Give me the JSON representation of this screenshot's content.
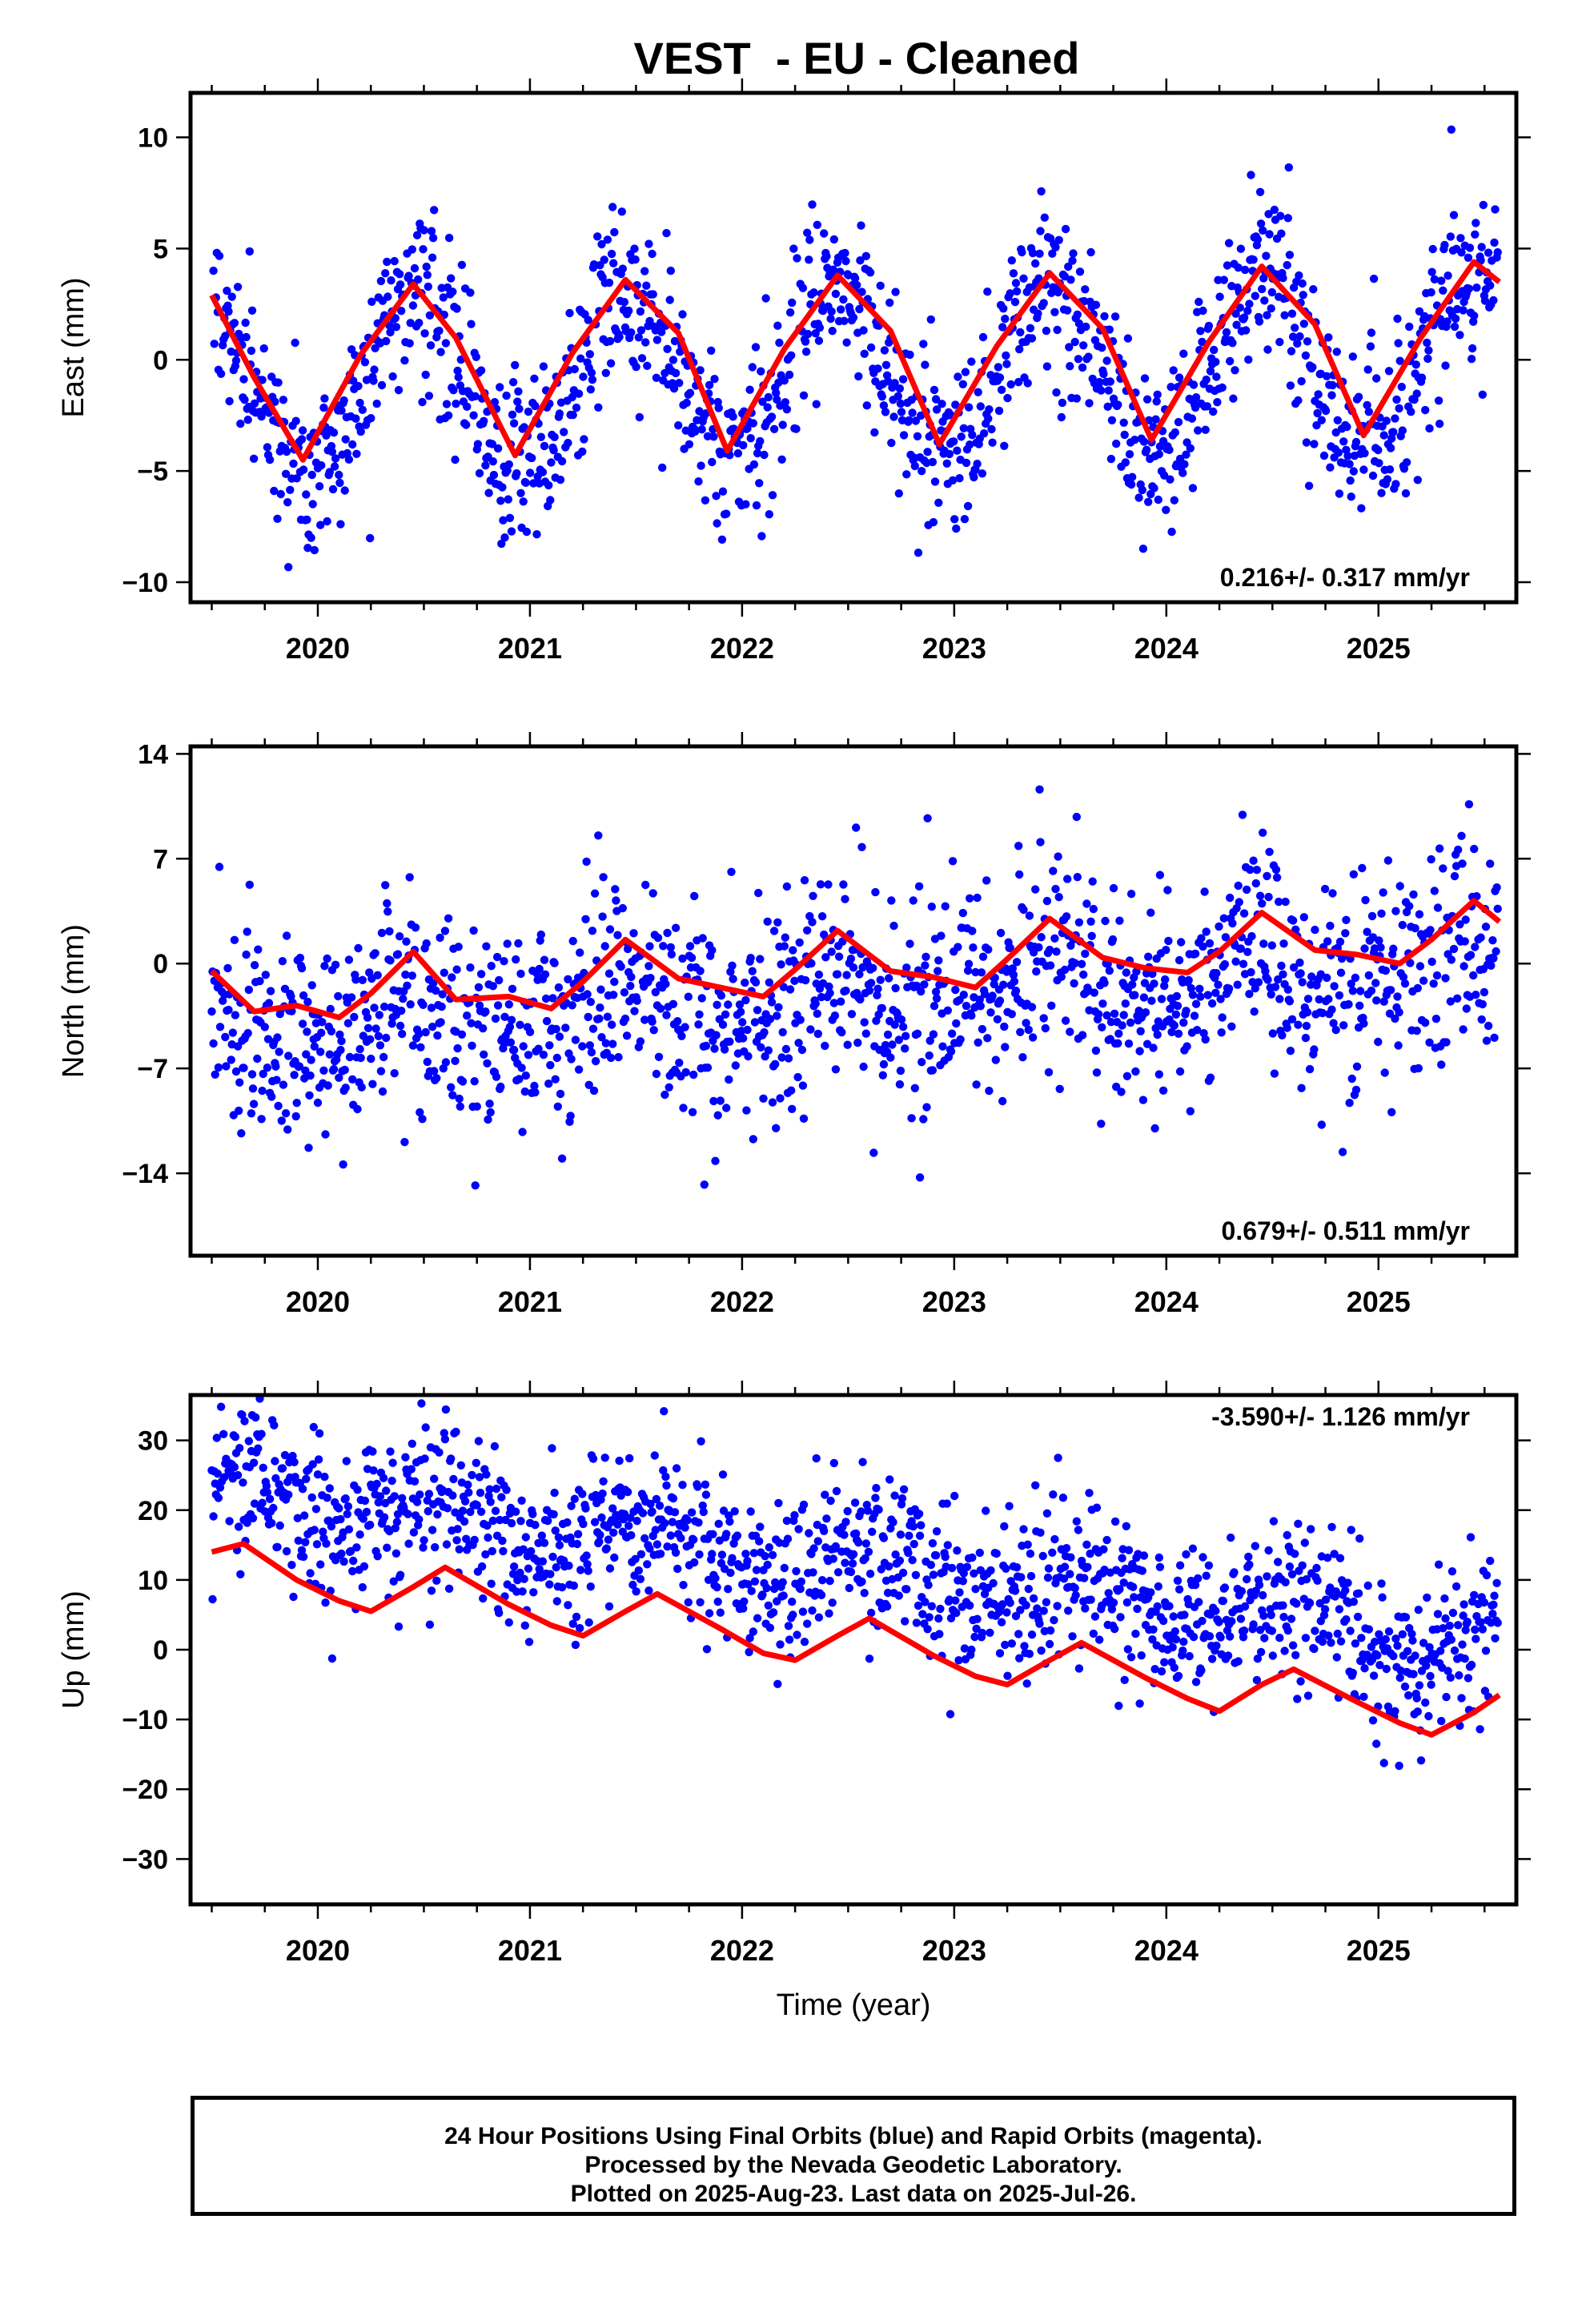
{
  "title": "VEST  - EU - Cleaned",
  "footer": {
    "lines": [
      "24 Hour Positions Using Final Orbits (blue) and Rapid Orbits (magenta).",
      "Processed by the Nevada Geodetic Laboratory.",
      "Plotted on 2025-Aug-23. Last data on 2025-Jul-26."
    ]
  },
  "colors": {
    "points": "#0000ff",
    "fit": "#ff0000",
    "axes": "#000000"
  },
  "chart_data": [
    {
      "type": "scatter",
      "name_key": "east",
      "ylabel": "East (mm)",
      "xlabel": "",
      "xlim": [
        2019.4,
        2025.65
      ],
      "ylim": [
        -10.9,
        12
      ],
      "yticks": [
        -10,
        -5,
        0,
        5,
        10
      ],
      "yticklabels": [
        "−10",
        "−5",
        "0",
        "5",
        "10"
      ],
      "xticks": [
        2020,
        2021,
        2022,
        2023,
        2024,
        2025
      ],
      "rate_label": "0.216+/- 0.317 mm/yr",
      "rate_position": "bottom-right",
      "model": {
        "velocity": 0.216,
        "annual_amp": 3.9,
        "annual_phase_peak": 0.45,
        "semiannual_amp": 0.1,
        "noise_sd": 1.9,
        "offset": -0.6
      },
      "fit_line": {
        "x": [
          2019.5,
          2019.7,
          2019.93,
          2020.2,
          2020.45,
          2020.65,
          2020.93,
          2021.2,
          2021.45,
          2021.7,
          2021.93,
          2022.2,
          2022.45,
          2022.7,
          2022.93,
          2023.2,
          2023.45,
          2023.7,
          2023.93,
          2024.2,
          2024.45,
          2024.7,
          2024.93,
          2025.2,
          2025.45,
          2025.57
        ],
        "y": [
          2.9,
          -0.8,
          -4.5,
          0.2,
          3.4,
          1.0,
          -4.3,
          0.3,
          3.6,
          1.2,
          -4.1,
          0.5,
          3.8,
          1.3,
          -3.8,
          0.6,
          3.9,
          1.4,
          -3.6,
          0.8,
          4.2,
          1.6,
          -3.4,
          1.0,
          4.4,
          3.5
        ]
      }
    },
    {
      "type": "scatter",
      "name_key": "north",
      "ylabel": "North (mm)",
      "xlabel": "",
      "xlim": [
        2019.4,
        2025.65
      ],
      "ylim": [
        -19.5,
        14.5
      ],
      "yticks": [
        -14,
        -7,
        0,
        7,
        14
      ],
      "yticklabels": [
        "−14",
        "−7",
        "0",
        "7",
        "14"
      ],
      "xticks": [
        2020,
        2021,
        2022,
        2023,
        2024,
        2025
      ],
      "rate_label": "0.679+/- 0.511 mm/yr",
      "rate_position": "bottom-right",
      "model": {
        "velocity": 0.679,
        "annual_amp": 1.6,
        "annual_phase_peak": 0.42,
        "semiannual_amp": 0.6,
        "noise_sd": 3.5,
        "offset": -2.2
      },
      "fit_line": {
        "x": [
          2019.5,
          2019.7,
          2019.9,
          2020.1,
          2020.25,
          2020.45,
          2020.65,
          2020.9,
          2021.1,
          2021.25,
          2021.45,
          2021.7,
          2021.9,
          2022.1,
          2022.25,
          2022.45,
          2022.7,
          2022.9,
          2023.1,
          2023.25,
          2023.45,
          2023.7,
          2023.9,
          2024.1,
          2024.25,
          2024.45,
          2024.7,
          2024.9,
          2025.1,
          2025.25,
          2025.45,
          2025.57
        ],
        "y": [
          -0.5,
          -3.2,
          -2.8,
          -3.6,
          -2.0,
          0.8,
          -2.4,
          -2.2,
          -3.0,
          -1.2,
          1.6,
          -1.0,
          -1.6,
          -2.2,
          -0.4,
          2.2,
          -0.5,
          -0.9,
          -1.6,
          0.3,
          3.0,
          0.4,
          -0.3,
          -0.6,
          0.8,
          3.4,
          0.9,
          0.6,
          0.0,
          1.6,
          4.2,
          2.8
        ]
      }
    },
    {
      "type": "scatter",
      "name_key": "up",
      "ylabel": "Up (mm)",
      "xlabel": "Time (year)",
      "xlim": [
        2019.4,
        2025.65
      ],
      "ylim": [
        -36.5,
        36.5
      ],
      "yticks": [
        -30,
        -20,
        -10,
        0,
        10,
        20,
        30
      ],
      "yticklabels": [
        "−30",
        "−20",
        "−10",
        "0",
        "10",
        "20",
        "30"
      ],
      "xticks": [
        2020,
        2021,
        2022,
        2023,
        2024,
        2025
      ],
      "rate_label": "-3.590+/- 1.126 mm/yr",
      "rate_position": "top-right",
      "model": {
        "velocity": -3.59,
        "annual_amp": 3.2,
        "annual_phase_peak": 0.6,
        "semiannual_amp": 0.0,
        "noise_sd": 5.5,
        "offset": 12.0
      },
      "fit_line": {
        "x": [
          2019.5,
          2019.65,
          2019.9,
          2020.1,
          2020.25,
          2020.45,
          2020.6,
          2020.9,
          2021.1,
          2021.25,
          2021.45,
          2021.6,
          2021.9,
          2022.1,
          2022.25,
          2022.45,
          2022.6,
          2022.9,
          2023.1,
          2023.25,
          2023.45,
          2023.6,
          2023.9,
          2024.1,
          2024.25,
          2024.45,
          2024.6,
          2024.9,
          2025.1,
          2025.25,
          2025.45,
          2025.57
        ],
        "y": [
          14.0,
          15.2,
          10.0,
          7.0,
          5.5,
          9.0,
          11.8,
          6.5,
          3.5,
          2.0,
          5.5,
          8.0,
          3.0,
          -0.5,
          -1.5,
          2.0,
          4.5,
          -0.8,
          -3.8,
          -5.0,
          -1.5,
          1.0,
          -4.0,
          -7.0,
          -8.8,
          -5.0,
          -2.8,
          -7.5,
          -10.5,
          -12.2,
          -9.0,
          -6.5
        ]
      }
    }
  ]
}
